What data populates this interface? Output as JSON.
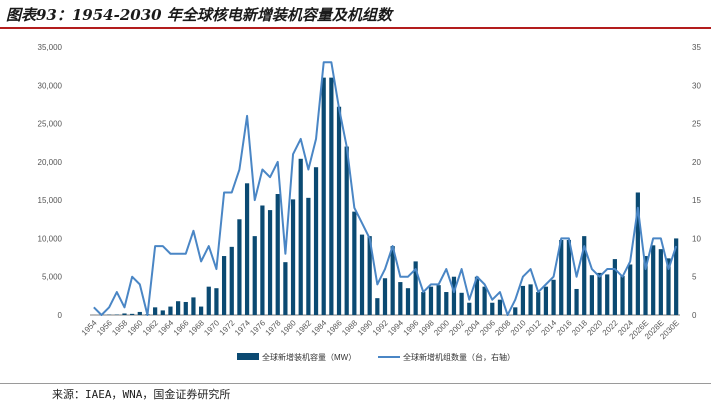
{
  "title": "图表93：1954-2030 年全球核电新增装机容量及机组数",
  "source": "来源：IAEA，WNA，国金证券研究所",
  "colors": {
    "bar": "#0b4a72",
    "line": "#4a86c5",
    "title_rule": "#b31d1d"
  },
  "chart_data": {
    "type": "bar+line",
    "categories": [
      "1954",
      "1955",
      "1956",
      "1957",
      "1958",
      "1959",
      "1960",
      "1961",
      "1962",
      "1963",
      "1964",
      "1965",
      "1966",
      "1967",
      "1968",
      "1969",
      "1970",
      "1971",
      "1972",
      "1973",
      "1974",
      "1975",
      "1976",
      "1977",
      "1978",
      "1979",
      "1980",
      "1981",
      "1982",
      "1983",
      "1984",
      "1985",
      "1986",
      "1987",
      "1988",
      "1989",
      "1990",
      "1991",
      "1992",
      "1993",
      "1994",
      "1995",
      "1996",
      "1997",
      "1998",
      "1999",
      "2000",
      "2001",
      "2002",
      "2003",
      "2004",
      "2005",
      "2006",
      "2007",
      "2008",
      "2009",
      "2010",
      "2011",
      "2012",
      "2013",
      "2014",
      "2015",
      "2016",
      "2017",
      "2018",
      "2019",
      "2020",
      "2021",
      "2022",
      "2023",
      "2024",
      "2025E",
      "2026E",
      "2027E",
      "2028E",
      "2029E",
      "2030E"
    ],
    "x_tick_labels": [
      "1954",
      "1956",
      "1958",
      "1960",
      "1962",
      "1964",
      "1966",
      "1968",
      "1970",
      "1972",
      "1974",
      "1976",
      "1978",
      "1980",
      "1982",
      "1984",
      "1986",
      "1988",
      "1990",
      "1992",
      "1994",
      "1996",
      "1998",
      "2000",
      "2002",
      "2004",
      "2006",
      "2008",
      "2010",
      "2012",
      "2014",
      "2016",
      "2018",
      "2020",
      "2022",
      "2024",
      "2026E",
      "2028E",
      "2030E"
    ],
    "series": [
      {
        "name": "全球新增装机容量（MW）",
        "type": "bar",
        "axis": "left",
        "values": [
          5,
          0,
          50,
          60,
          200,
          150,
          400,
          100,
          1000,
          600,
          1100,
          1800,
          1700,
          2300,
          1100,
          3700,
          3500,
          7700,
          8900,
          12500,
          17200,
          10300,
          14300,
          13700,
          15800,
          6900,
          15100,
          20400,
          15300,
          19300,
          31000,
          31000,
          27200,
          22000,
          13500,
          10500,
          10300,
          2200,
          4800,
          9000,
          4300,
          3500,
          7000,
          3000,
          3700,
          3900,
          3000,
          5000,
          2900,
          1600,
          5000,
          3700,
          1600,
          2000,
          0,
          1000,
          3800,
          4000,
          3000,
          3700,
          4600,
          9800,
          9800,
          3400,
          10300,
          5200,
          5500,
          5300,
          7300,
          5100,
          6600,
          16000,
          7700,
          9100,
          8600,
          7400,
          10000
        ]
      },
      {
        "name": "全球新增机组数量（台，右轴）",
        "type": "line",
        "axis": "right",
        "values": [
          1,
          0,
          1,
          3,
          1,
          5,
          4,
          0,
          9,
          9,
          8,
          8,
          8,
          11,
          7,
          9,
          6,
          16,
          16,
          19,
          26,
          15,
          19,
          18,
          20,
          8,
          21,
          23,
          19,
          23,
          33,
          33,
          27,
          22,
          14,
          12,
          10,
          4,
          6,
          9,
          5,
          5,
          6,
          3,
          4,
          4,
          6,
          3,
          6,
          2,
          5,
          4,
          2,
          3,
          0,
          2,
          5,
          6,
          3,
          4,
          5,
          10,
          10,
          5,
          9,
          6,
          5,
          6,
          6,
          5,
          7,
          14,
          6,
          10,
          10,
          6,
          9
        ]
      }
    ],
    "y_left": {
      "ylim": [
        0,
        35000
      ],
      "ticks": [
        "0",
        "5,000",
        "10,000",
        "15,000",
        "20,000",
        "25,000",
        "30,000",
        "35,000"
      ]
    },
    "y_right": {
      "ylim": [
        0,
        35
      ],
      "ticks": [
        "0",
        "5",
        "10",
        "15",
        "20",
        "25",
        "30",
        "35"
      ]
    },
    "legend_position": "bottom-center",
    "grid": false
  }
}
